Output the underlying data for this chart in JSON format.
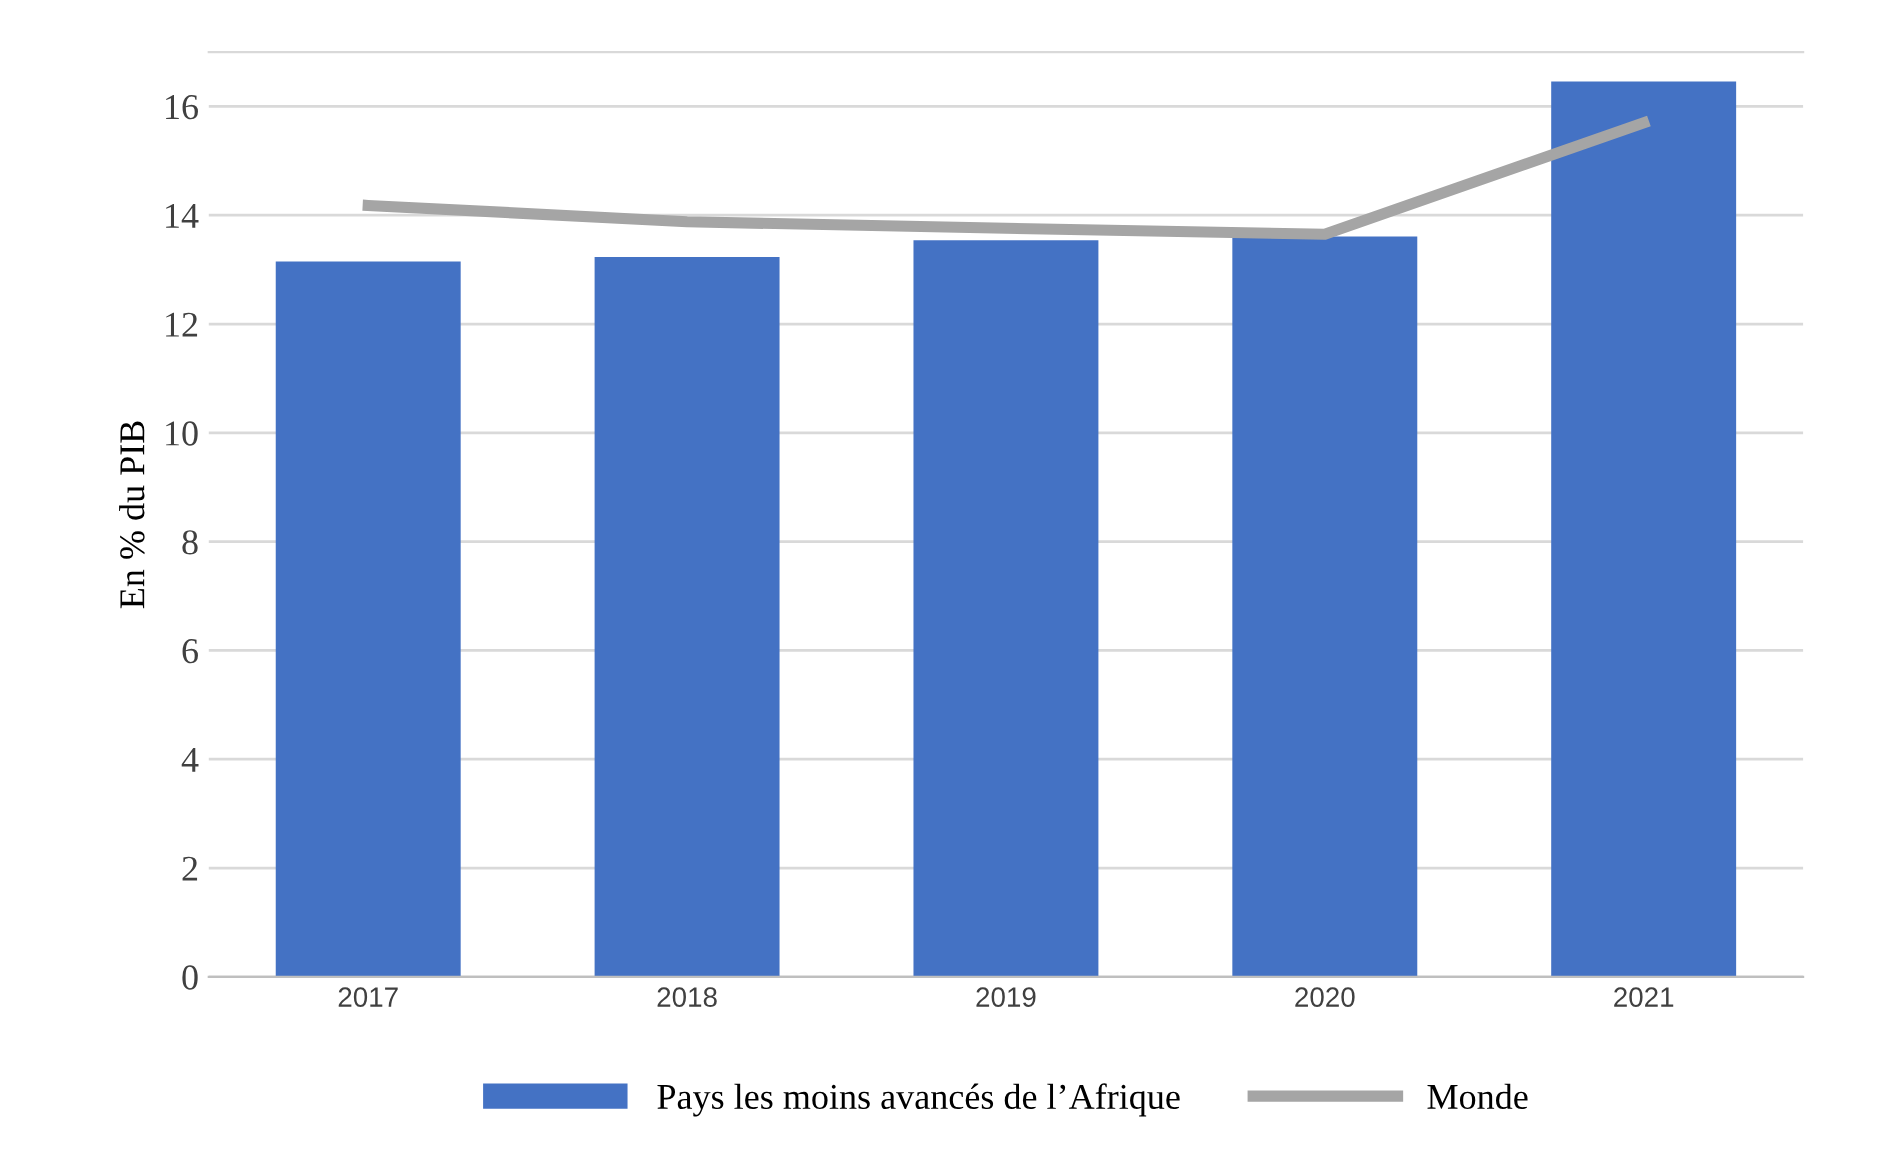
{
  "chart_data": {
    "type": "bar",
    "ylabel": "En % du PIB",
    "categories": [
      "2017",
      "2018",
      "2019",
      "2020",
      "2021"
    ],
    "series": [
      {
        "name": "Pays les moins avancés de l’Afrique",
        "color": "#4472c4",
        "values": [
          13.15,
          13.23,
          13.54,
          13.61,
          16.46
        ]
      },
      {
        "name": "Monde",
        "type": "line",
        "color": "#a5a5a5",
        "values": [
          14.18,
          13.88,
          13.76,
          13.65,
          15.7
        ]
      }
    ],
    "ylim": [
      0,
      17
    ],
    "yticks": [
      0,
      2,
      4,
      6,
      8,
      10,
      12,
      14,
      16
    ],
    "grid": "y",
    "legend": "bottom"
  }
}
